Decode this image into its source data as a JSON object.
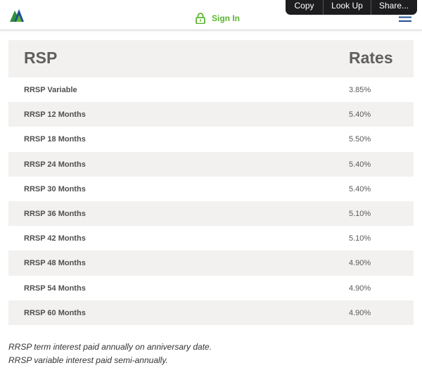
{
  "header": {
    "signin_label": "Sign In",
    "icons": [
      "logo-icon",
      "lock-icon",
      "hamburger-icon"
    ],
    "accent_color": "#5bb531"
  },
  "context_menu": {
    "copy_label": "Copy",
    "lookup_label": "Look Up",
    "share_label": "Share..."
  },
  "table": {
    "headers": [
      "RSP",
      "Rates"
    ],
    "rows": [
      {
        "name": "RRSP Variable",
        "rate": "3.85%"
      },
      {
        "name": "RRSP 12 Months",
        "rate": "5.40%"
      },
      {
        "name": "RRSP 18 Months",
        "rate": "5.50%"
      },
      {
        "name": "RRSP 24 Months",
        "rate": "5.40%"
      },
      {
        "name": "RRSP 30 Months",
        "rate": "5.40%"
      },
      {
        "name": "RRSP 36 Months",
        "rate": "5.10%"
      },
      {
        "name": "RRSP 42 Months",
        "rate": "5.10%"
      },
      {
        "name": "RRSP 48 Months",
        "rate": "4.90%"
      },
      {
        "name": "RRSP 54 Months",
        "rate": "4.90%"
      },
      {
        "name": "RRSP 60 Months",
        "rate": "4.90%"
      }
    ]
  },
  "notes": [
    "RRSP term interest paid annually on anniversary date.",
    "RRSP variable interest paid semi-annually."
  ]
}
